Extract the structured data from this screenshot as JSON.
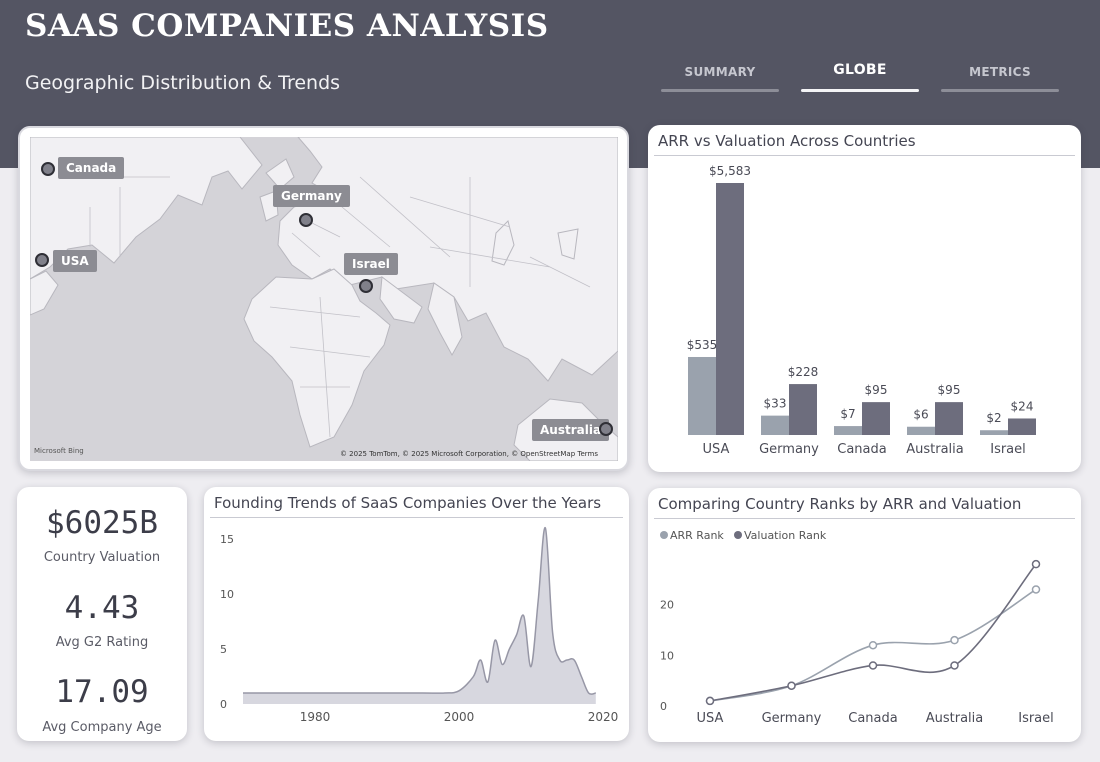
{
  "header": {
    "title": "SAAS COMPANIES ANALYSIS",
    "subtitle": "Geographic Distribution & Trends",
    "tabs": [
      "SUMMARY",
      "GLOBE",
      "METRICS"
    ],
    "active_tab": "GLOBE"
  },
  "map": {
    "labels": [
      "Canada",
      "Germany",
      "USA",
      "Israel",
      "Australia"
    ],
    "brand": "Microsoft Bing",
    "copyright": "© 2025 TomTom, © 2025 Microsoft Corporation, © OpenStreetMap  Terms"
  },
  "kpis": [
    {
      "value": "$6025B",
      "label": "Country Valuation"
    },
    {
      "value": "4.43",
      "label": "Avg G2 Rating"
    },
    {
      "value": "17.09",
      "label": "Avg Company Age"
    }
  ],
  "colors": {
    "header": "#545563",
    "arr": "#9aa2ad",
    "valuation": "#6d6d7d",
    "trend_fill": "#d7d7df",
    "trend_line": "#9797a6"
  },
  "chart_data": [
    {
      "type": "bar",
      "title": "ARR vs Valuation Across Countries",
      "categories": [
        "USA",
        "Germany",
        "Canada",
        "Australia",
        "Israel"
      ],
      "series": [
        {
          "values": [
            535,
            33,
            7,
            6,
            2
          ],
          "labels": [
            "$535",
            "$33",
            "$7",
            "$6",
            "$2"
          ]
        },
        {
          "values": [
            5583,
            228,
            95,
            95,
            24
          ],
          "labels": [
            "$5,583",
            "$228",
            "$95",
            "$95",
            "$24"
          ]
        }
      ],
      "legend": "none"
    },
    {
      "type": "area",
      "title": "Founding Trends of SaaS Companies Over the Years",
      "x": [
        1970,
        1975,
        1980,
        1985,
        1990,
        1995,
        1998,
        2000,
        2002,
        2003,
        2004,
        2005,
        2006,
        2007,
        2008,
        2009,
        2010,
        2011,
        2012,
        2013,
        2014,
        2015,
        2016,
        2017,
        2018,
        2019
      ],
      "y": [
        1,
        1,
        1,
        1,
        1,
        1,
        1,
        1.2,
        2.5,
        4,
        2,
        5.8,
        3.6,
        5,
        6.3,
        8,
        3.4,
        9.4,
        16,
        6.5,
        4,
        4,
        4,
        2.5,
        1,
        1
      ],
      "xticks": [
        1980,
        2000,
        2020
      ],
      "yticks": [
        0,
        5,
        10,
        15
      ],
      "ylim": [
        0,
        16
      ]
    },
    {
      "type": "line",
      "title": "Comparing Country Ranks by ARR and Valuation",
      "categories": [
        "USA",
        "Germany",
        "Canada",
        "Australia",
        "Israel"
      ],
      "series": [
        {
          "name": "ARR Rank",
          "values": [
            1,
            4,
            12,
            13,
            23
          ]
        },
        {
          "name": "Valuation Rank",
          "values": [
            1,
            4,
            8,
            8,
            28
          ]
        }
      ],
      "yticks": [
        0,
        10,
        20
      ],
      "ylim": [
        0,
        30
      ],
      "legend": "top-left"
    }
  ]
}
